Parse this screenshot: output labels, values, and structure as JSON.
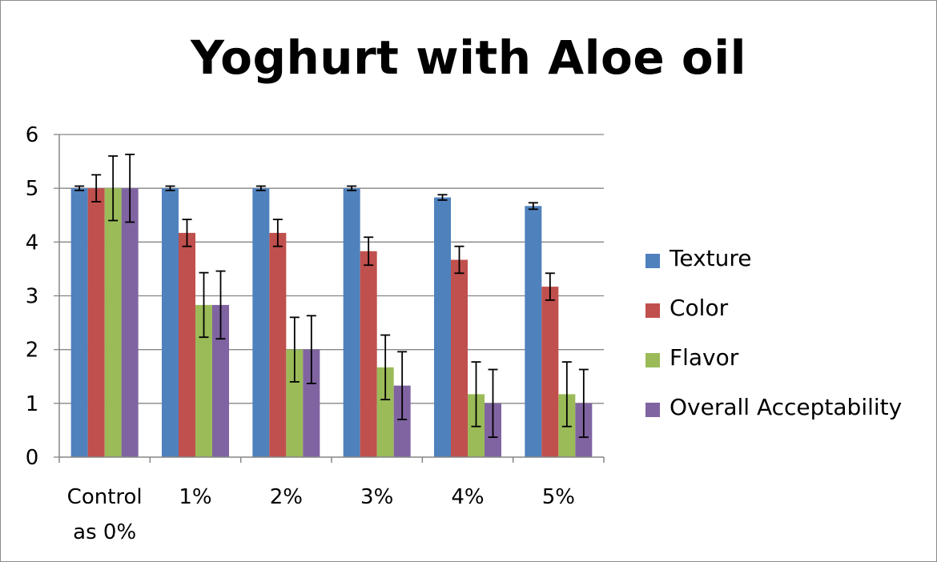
{
  "chart_data": {
    "type": "bar",
    "title": "Yoghurt with Aloe oil",
    "categories": [
      "Control\nas 0%",
      "1%",
      "2%",
      "3%",
      "4%",
      "5%"
    ],
    "ylim": [
      0,
      6
    ],
    "yticks": [
      0,
      1,
      2,
      3,
      4,
      5,
      6
    ],
    "grid": true,
    "legend_position": "right",
    "series": [
      {
        "name": "Texture",
        "color": "#4f81bd",
        "values": [
          5.0,
          5.0,
          5.0,
          5.0,
          4.83,
          4.67
        ],
        "errors": [
          0.04,
          0.04,
          0.04,
          0.04,
          0.05,
          0.06
        ]
      },
      {
        "name": "Color",
        "color": "#c0504d",
        "values": [
          5.0,
          4.17,
          4.17,
          3.83,
          3.67,
          3.17
        ],
        "errors": [
          0.25,
          0.25,
          0.25,
          0.26,
          0.25,
          0.25
        ]
      },
      {
        "name": "Flavor",
        "color": "#9bbb59",
        "values": [
          5.0,
          2.83,
          2.0,
          1.67,
          1.17,
          1.17
        ],
        "errors": [
          0.6,
          0.6,
          0.6,
          0.6,
          0.6,
          0.6
        ]
      },
      {
        "name": "Overall Acceptability",
        "color": "#8064a2",
        "values": [
          5.0,
          2.83,
          2.0,
          1.33,
          1.0,
          1.0
        ],
        "errors": [
          0.63,
          0.63,
          0.63,
          0.63,
          0.63,
          0.63
        ]
      }
    ]
  }
}
